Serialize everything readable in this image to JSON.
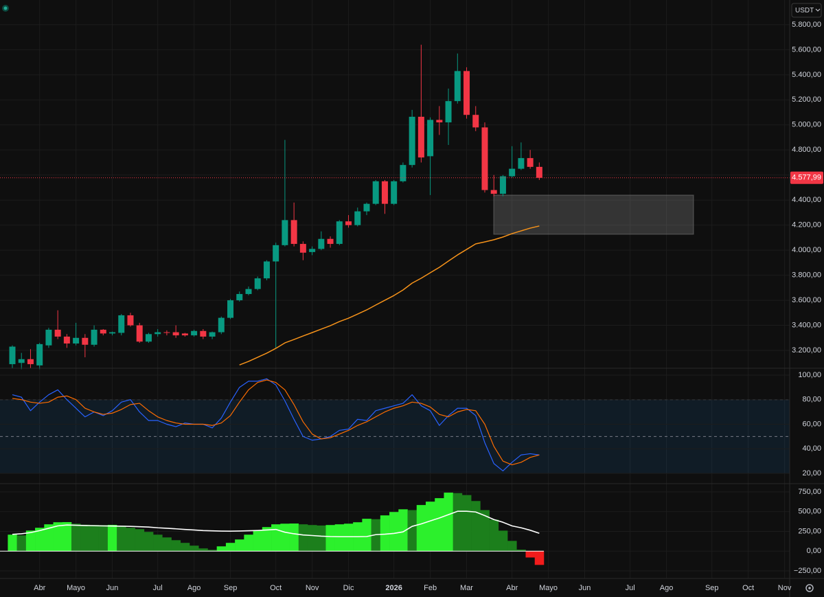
{
  "chart_data": [
    {
      "type": "candlestick",
      "currency": "USDT",
      "open": [
        3090,
        3100,
        3130,
        3080,
        3240,
        3365,
        3310,
        3255,
        3300,
        3245,
        3365,
        3335,
        3340,
        3480,
        3400,
        3270,
        3330,
        3345,
        3345,
        3335,
        3320,
        3355,
        3310,
        3345,
        3460,
        3600,
        3650,
        3690,
        3775,
        3910,
        4040,
        4240,
        4050,
        3985,
        4010,
        4090,
        4050,
        4230,
        4200,
        4310,
        4370,
        4550,
        4370,
        4550,
        4680,
        5065,
        4750,
        5040,
        5020,
        5190,
        5430,
        5080,
        4980,
        4480,
        4450,
        4590,
        4650,
        4735,
        4665
      ],
      "high": [
        3240,
        3180,
        3210,
        3260,
        3380,
        3520,
        3330,
        3420,
        3330,
        3400,
        3370,
        3350,
        3490,
        3500,
        3420,
        3340,
        3370,
        3360,
        3400,
        3340,
        3365,
        3370,
        3350,
        3470,
        3610,
        3670,
        3710,
        3790,
        3920,
        4060,
        4880,
        4380,
        4070,
        4030,
        4150,
        4110,
        4240,
        4280,
        4340,
        4380,
        4560,
        4560,
        4560,
        4700,
        5120,
        5640,
        5060,
        5150,
        5290,
        5570,
        5460,
        5150,
        5020,
        4600,
        4600,
        4830,
        4860,
        4800,
        4700
      ],
      "low": [
        3060,
        3050,
        3060,
        3050,
        3220,
        3290,
        3220,
        3240,
        3145,
        3230,
        3320,
        3320,
        3320,
        3390,
        3260,
        3260,
        3310,
        3320,
        3300,
        3310,
        3310,
        3290,
        3290,
        3330,
        3450,
        3590,
        3640,
        3680,
        3760,
        3220,
        4030,
        4030,
        3920,
        3960,
        4000,
        4020,
        4040,
        4180,
        4190,
        4280,
        4360,
        4290,
        4360,
        4540,
        4660,
        4700,
        4440,
        4920,
        4840,
        5170,
        5050,
        4950,
        4460,
        4430,
        4430,
        4580,
        4640,
        4650,
        4560
      ],
      "close": [
        3230,
        3130,
        3090,
        3250,
        3365,
        3310,
        3255,
        3300,
        3245,
        3365,
        3335,
        3345,
        3480,
        3400,
        3270,
        3330,
        3345,
        3340,
        3320,
        3320,
        3355,
        3310,
        3345,
        3460,
        3600,
        3650,
        3690,
        3775,
        3910,
        4040,
        4240,
        4050,
        3980,
        4010,
        4090,
        4050,
        4230,
        4200,
        4310,
        4370,
        4550,
        4370,
        4550,
        4680,
        5065,
        4740,
        5040,
        5020,
        5190,
        5430,
        5080,
        4980,
        4480,
        4450,
        4590,
        4650,
        4735,
        4665,
        4577.99
      ],
      "up_color": "#089981",
      "down_color": "#f23645",
      "overlay": {
        "color": "#f7931a",
        "values": [
          null,
          null,
          null,
          null,
          null,
          null,
          null,
          null,
          null,
          null,
          null,
          null,
          null,
          null,
          null,
          null,
          null,
          null,
          null,
          null,
          null,
          null,
          null,
          null,
          null,
          3084,
          3112,
          3145,
          3178,
          3216,
          3260,
          3287,
          3315,
          3342,
          3370,
          3397,
          3430,
          3457,
          3490,
          3523,
          3562,
          3600,
          3638,
          3682,
          3737,
          3776,
          3820,
          3863,
          3913,
          3962,
          4006,
          4050,
          4066,
          4083,
          4105,
          4132,
          4154,
          4176,
          4193
        ]
      },
      "last_price": {
        "value": 4577.99,
        "label": "4.577,99"
      },
      "ylim": [
        3063,
        5997
      ],
      "yticks": [
        {
          "value": 3200,
          "label": "3.200,00"
        },
        {
          "value": 3400,
          "label": "3.400,00"
        },
        {
          "value": 3600,
          "label": "3.600,00"
        },
        {
          "value": 3800,
          "label": "3.800,00"
        },
        {
          "value": 4000,
          "label": "4.000,00"
        },
        {
          "value": 4200,
          "label": "4.200,00"
        },
        {
          "value": 4400,
          "label": "4.400,00"
        },
        {
          "value": 4600,
          "label": "4.600,00"
        },
        {
          "value": 4800,
          "label": "4.800,00"
        },
        {
          "value": 5000,
          "label": "5.000,00"
        },
        {
          "value": 5200,
          "label": "5.200,00"
        },
        {
          "value": 5400,
          "label": "5.400,00"
        },
        {
          "value": 5600,
          "label": "5.600,00"
        },
        {
          "value": 5800,
          "label": "5.800,00"
        }
      ],
      "grid": true
    },
    {
      "type": "line",
      "series": [
        {
          "color": "#2962ff",
          "values": [
            84,
            82,
            71,
            78,
            84,
            88,
            80,
            73,
            66,
            70,
            67,
            71,
            78,
            80,
            70,
            63,
            63,
            60,
            58,
            61,
            60,
            60,
            57,
            65,
            78,
            90,
            95,
            95,
            97,
            92,
            79,
            64,
            50,
            47,
            48,
            50,
            55,
            56,
            64,
            63,
            71,
            73,
            75,
            77,
            84,
            75,
            71,
            59,
            67,
            73,
            73,
            67,
            45,
            28,
            22,
            29,
            35,
            36,
            35
          ]
        },
        {
          "color": "#ff6d00",
          "values": [
            81,
            80,
            78,
            77,
            78,
            82,
            83,
            80,
            73,
            70,
            68,
            69,
            72,
            76,
            77,
            71,
            66,
            63,
            61,
            60,
            60,
            60,
            59,
            61,
            67,
            78,
            88,
            94,
            96,
            94,
            88,
            76,
            62,
            52,
            48,
            49,
            52,
            55,
            59,
            62,
            66,
            70,
            73,
            75,
            78,
            77,
            74,
            68,
            66,
            70,
            72,
            71,
            60,
            42,
            30,
            27,
            29,
            33,
            35
          ]
        }
      ],
      "band": [
        20,
        80
      ],
      "levels": [
        20,
        50,
        80
      ],
      "ylim": [
        12.2,
        105
      ],
      "yticks": [
        {
          "value": 20,
          "label": "20,00"
        },
        {
          "value": 40,
          "label": "40,00"
        },
        {
          "value": 60,
          "label": "60,00"
        },
        {
          "value": 80,
          "label": "80,00"
        },
        {
          "value": 100,
          "label": "100,00"
        }
      ],
      "grid": true
    },
    {
      "type": "bar",
      "values": [
        209,
        200,
        261,
        296,
        340,
        366,
        368,
        348,
        335,
        332,
        330,
        333,
        322,
        296,
        279,
        244,
        209,
        174,
        139,
        105,
        70,
        35,
        17,
        61,
        105,
        148,
        209,
        261,
        305,
        340,
        348,
        350,
        340,
        331,
        325,
        331,
        340,
        348,
        366,
        410,
        405,
        453,
        496,
        530,
        520,
        584,
        627,
        671,
        741,
        735,
        710,
        635,
        520,
        400,
        260,
        130,
        20,
        -80,
        -174
      ],
      "colors": {
        "rising": "#2cf02c",
        "falling": "#1c7f1c",
        "negative": "#f21c1c"
      },
      "series": [
        {
          "color": "#ffffff",
          "values": [
            213,
            220,
            235,
            260,
            290,
            320,
            331,
            328,
            325,
            322,
            320,
            318,
            316,
            314,
            310,
            305,
            296,
            290,
            283,
            275,
            268,
            261,
            257,
            254,
            253,
            255,
            258,
            262,
            268,
            275,
            240,
            220,
            205,
            198,
            190,
            185,
            183,
            183,
            183,
            185,
            209,
            215,
            225,
            244,
            314,
            345,
            383,
            420,
            462,
            505,
            505,
            496,
            450,
            400,
            366,
            320,
            296,
            265,
            226
          ]
        }
      ],
      "ylim": [
        -328,
        846
      ],
      "yticks": [
        {
          "value": -250,
          "label": "−250,00"
        },
        {
          "value": 0,
          "label": "0,00"
        },
        {
          "value": 250,
          "label": "250,00"
        },
        {
          "value": 500,
          "label": "500,00"
        },
        {
          "value": 750,
          "label": "750,00"
        }
      ],
      "xlim": [
        -1.36,
        85.56
      ],
      "xticks": [
        {
          "value": 3,
          "label": "Abr"
        },
        {
          "value": 7,
          "label": "Mayo"
        },
        {
          "value": 11,
          "label": "Jun"
        },
        {
          "value": 16,
          "label": "Jul"
        },
        {
          "value": 20,
          "label": "Ago"
        },
        {
          "value": 24,
          "label": "Sep"
        },
        {
          "value": 29,
          "label": "Oct"
        },
        {
          "value": 33,
          "label": "Nov"
        },
        {
          "value": 37,
          "label": "Dic"
        },
        {
          "value": 42,
          "label": "2026"
        },
        {
          "value": 46,
          "label": "Feb"
        },
        {
          "value": 50,
          "label": "Mar"
        },
        {
          "value": 55,
          "label": "Abr"
        },
        {
          "value": 59,
          "label": "Mayo"
        },
        {
          "value": 63,
          "label": "Jun"
        },
        {
          "value": 68,
          "label": "Jul"
        },
        {
          "value": 72,
          "label": "Ago"
        },
        {
          "value": 77,
          "label": "Sep"
        },
        {
          "value": 81,
          "label": "Oct"
        },
        {
          "value": 85,
          "label": "Nov"
        }
      ],
      "grid": true
    }
  ]
}
